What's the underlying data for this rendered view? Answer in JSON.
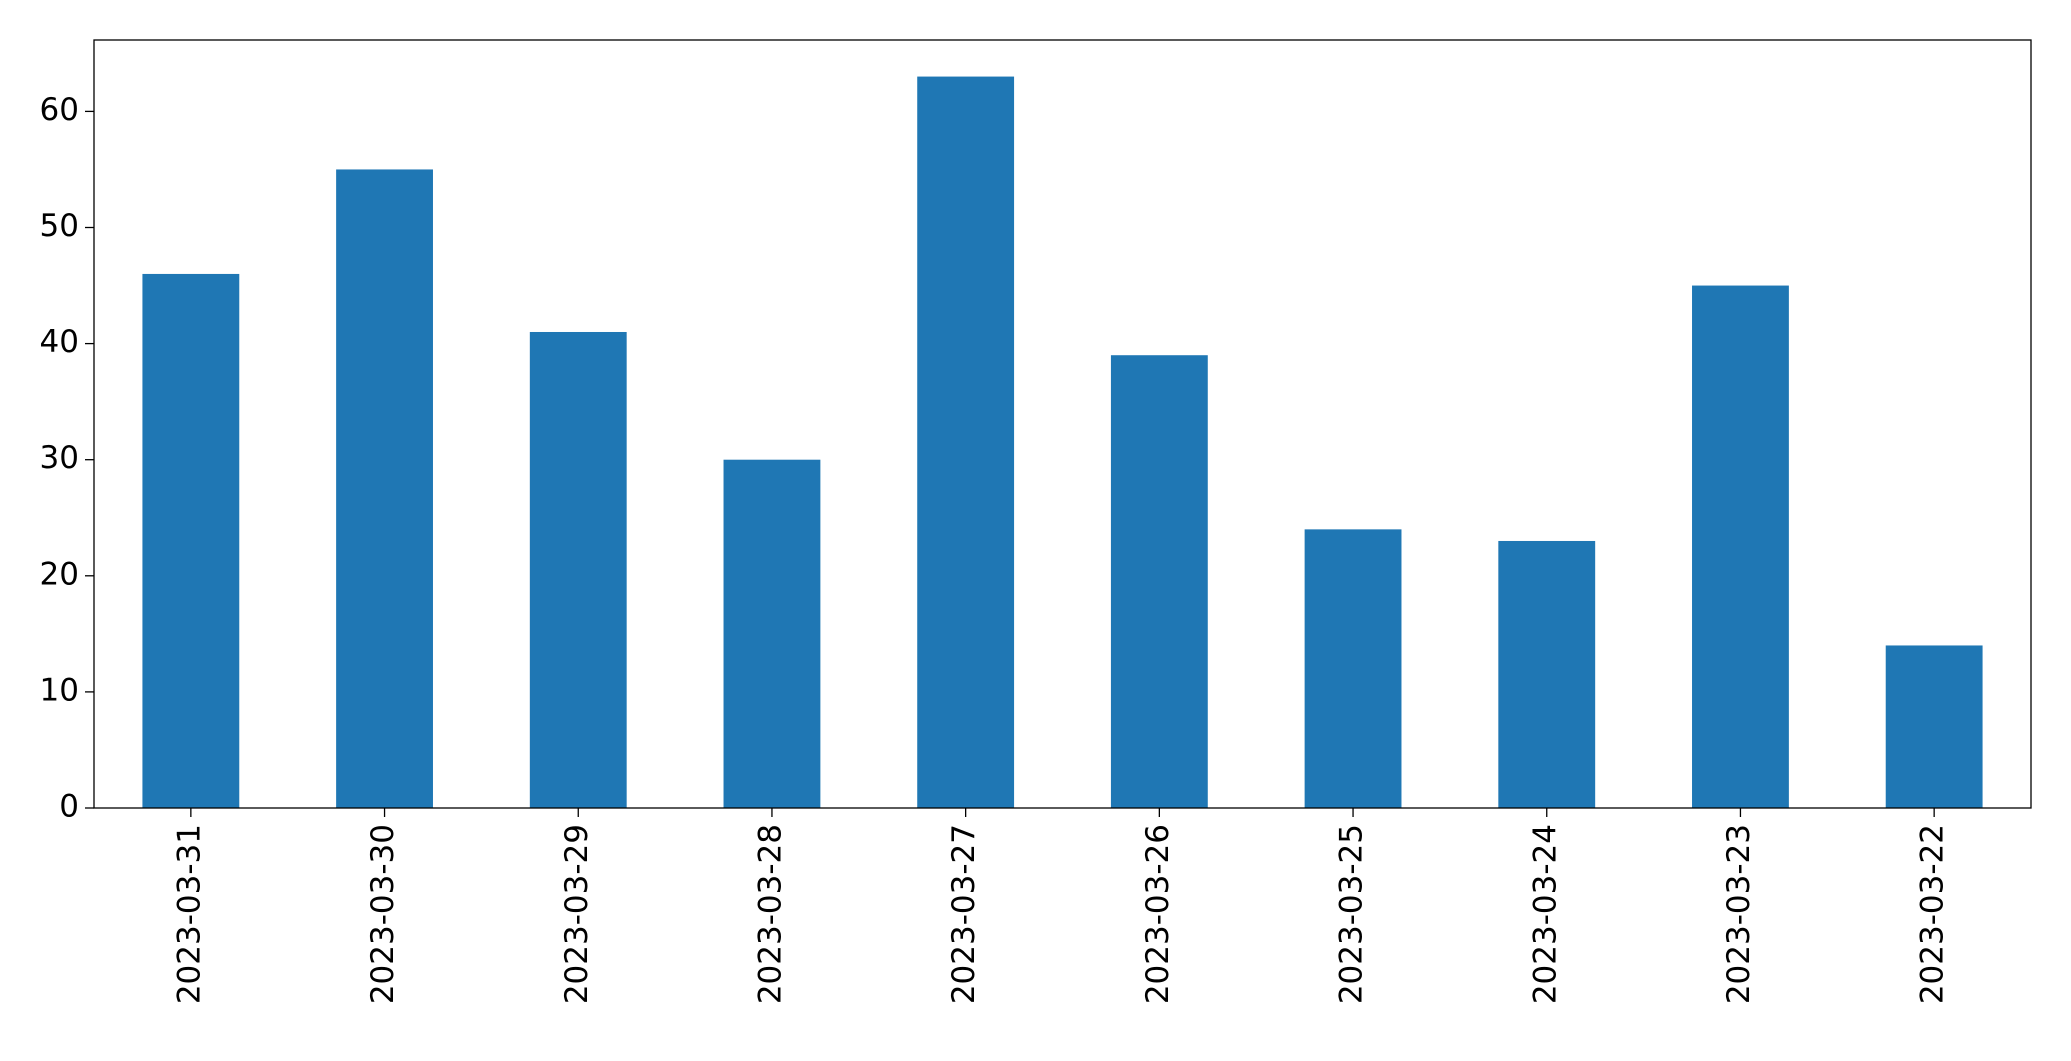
{
  "chart_data": {
    "type": "bar",
    "categories": [
      "2023-03-31",
      "2023-03-30",
      "2023-03-29",
      "2023-03-28",
      "2023-03-27",
      "2023-03-26",
      "2023-03-25",
      "2023-03-24",
      "2023-03-23",
      "2023-03-22"
    ],
    "values": [
      46,
      55,
      41,
      30,
      63,
      39,
      24,
      23,
      45,
      14
    ],
    "color": "#1f77b4",
    "ylim": [
      0,
      66.15
    ],
    "yticks": [
      0,
      10,
      20,
      30,
      40,
      50,
      60
    ],
    "grid": false
  }
}
